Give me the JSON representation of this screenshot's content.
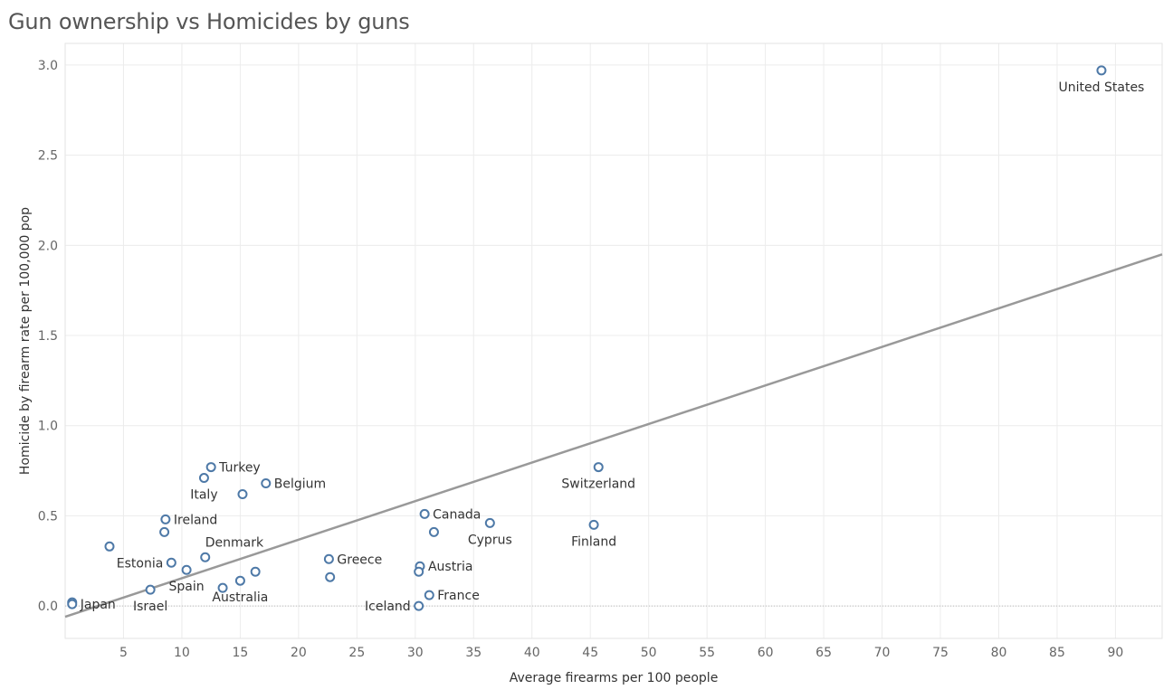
{
  "chart_data": {
    "type": "scatter",
    "title": "Gun ownership vs Homicides by guns",
    "xlabel": "Average firearms per 100 people",
    "ylabel": "Homicide by firearm rate per 100,000 pop",
    "xlim": [
      0,
      94
    ],
    "ylim": [
      -0.18,
      3.12
    ],
    "x_ticks": [
      5,
      10,
      15,
      20,
      25,
      30,
      35,
      40,
      45,
      50,
      55,
      60,
      65,
      70,
      75,
      80,
      85,
      90
    ],
    "y_ticks": [
      0.0,
      0.5,
      1.0,
      1.5,
      2.0,
      2.5,
      3.0
    ],
    "y_tick_labels": [
      "0.0",
      "0.5",
      "1.0",
      "1.5",
      "2.0",
      "2.5",
      "3.0"
    ],
    "grid": true,
    "marker_color": "#4e79a7",
    "trend_color": "#999999",
    "trend_line": {
      "x": [
        0,
        94
      ],
      "y": [
        -0.06,
        1.95
      ]
    },
    "points": [
      {
        "x": 88.8,
        "y": 2.97,
        "label": "United States",
        "label_pos": "below"
      },
      {
        "x": 45.7,
        "y": 0.77,
        "label": "Switzerland",
        "label_pos": "below"
      },
      {
        "x": 45.3,
        "y": 0.45,
        "label": "Finland",
        "label_pos": "below"
      },
      {
        "x": 36.4,
        "y": 0.46,
        "label": "Cyprus",
        "label_pos": "below"
      },
      {
        "x": 31.6,
        "y": 0.41,
        "label": "",
        "label_pos": ""
      },
      {
        "x": 30.8,
        "y": 0.51,
        "label": "Canada",
        "label_pos": "right"
      },
      {
        "x": 30.4,
        "y": 0.22,
        "label": "Austria",
        "label_pos": "right"
      },
      {
        "x": 30.3,
        "y": 0.19,
        "label": "",
        "label_pos": ""
      },
      {
        "x": 31.2,
        "y": 0.06,
        "label": "France",
        "label_pos": "right"
      },
      {
        "x": 30.3,
        "y": 0.0,
        "label": "Iceland",
        "label_pos": "left"
      },
      {
        "x": 22.6,
        "y": 0.26,
        "label": "Greece",
        "label_pos": "right"
      },
      {
        "x": 22.7,
        "y": 0.16,
        "label": "",
        "label_pos": ""
      },
      {
        "x": 17.2,
        "y": 0.68,
        "label": "Belgium",
        "label_pos": "right"
      },
      {
        "x": 15.2,
        "y": 0.62,
        "label": "",
        "label_pos": ""
      },
      {
        "x": 12.5,
        "y": 0.77,
        "label": "Turkey",
        "label_pos": "right"
      },
      {
        "x": 11.9,
        "y": 0.71,
        "label": "Italy",
        "label_pos": "below"
      },
      {
        "x": 8.6,
        "y": 0.48,
        "label": "Ireland",
        "label_pos": "right"
      },
      {
        "x": 8.5,
        "y": 0.41,
        "label": "",
        "label_pos": ""
      },
      {
        "x": 3.8,
        "y": 0.33,
        "label": "",
        "label_pos": ""
      },
      {
        "x": 12.0,
        "y": 0.27,
        "label": "Denmark",
        "label_pos": "above"
      },
      {
        "x": 9.1,
        "y": 0.24,
        "label": "Estonia",
        "label_pos": "left"
      },
      {
        "x": 10.4,
        "y": 0.2,
        "label": "Spain",
        "label_pos": "below"
      },
      {
        "x": 16.3,
        "y": 0.19,
        "label": "",
        "label_pos": ""
      },
      {
        "x": 15.0,
        "y": 0.14,
        "label": "Australia",
        "label_pos": "below"
      },
      {
        "x": 13.5,
        "y": 0.1,
        "label": "",
        "label_pos": ""
      },
      {
        "x": 7.3,
        "y": 0.09,
        "label": "Israel",
        "label_pos": "below"
      },
      {
        "x": 0.6,
        "y": 0.02,
        "label": "",
        "label_pos": ""
      },
      {
        "x": 0.6,
        "y": 0.01,
        "label": "Japan",
        "label_pos": "right"
      }
    ]
  }
}
